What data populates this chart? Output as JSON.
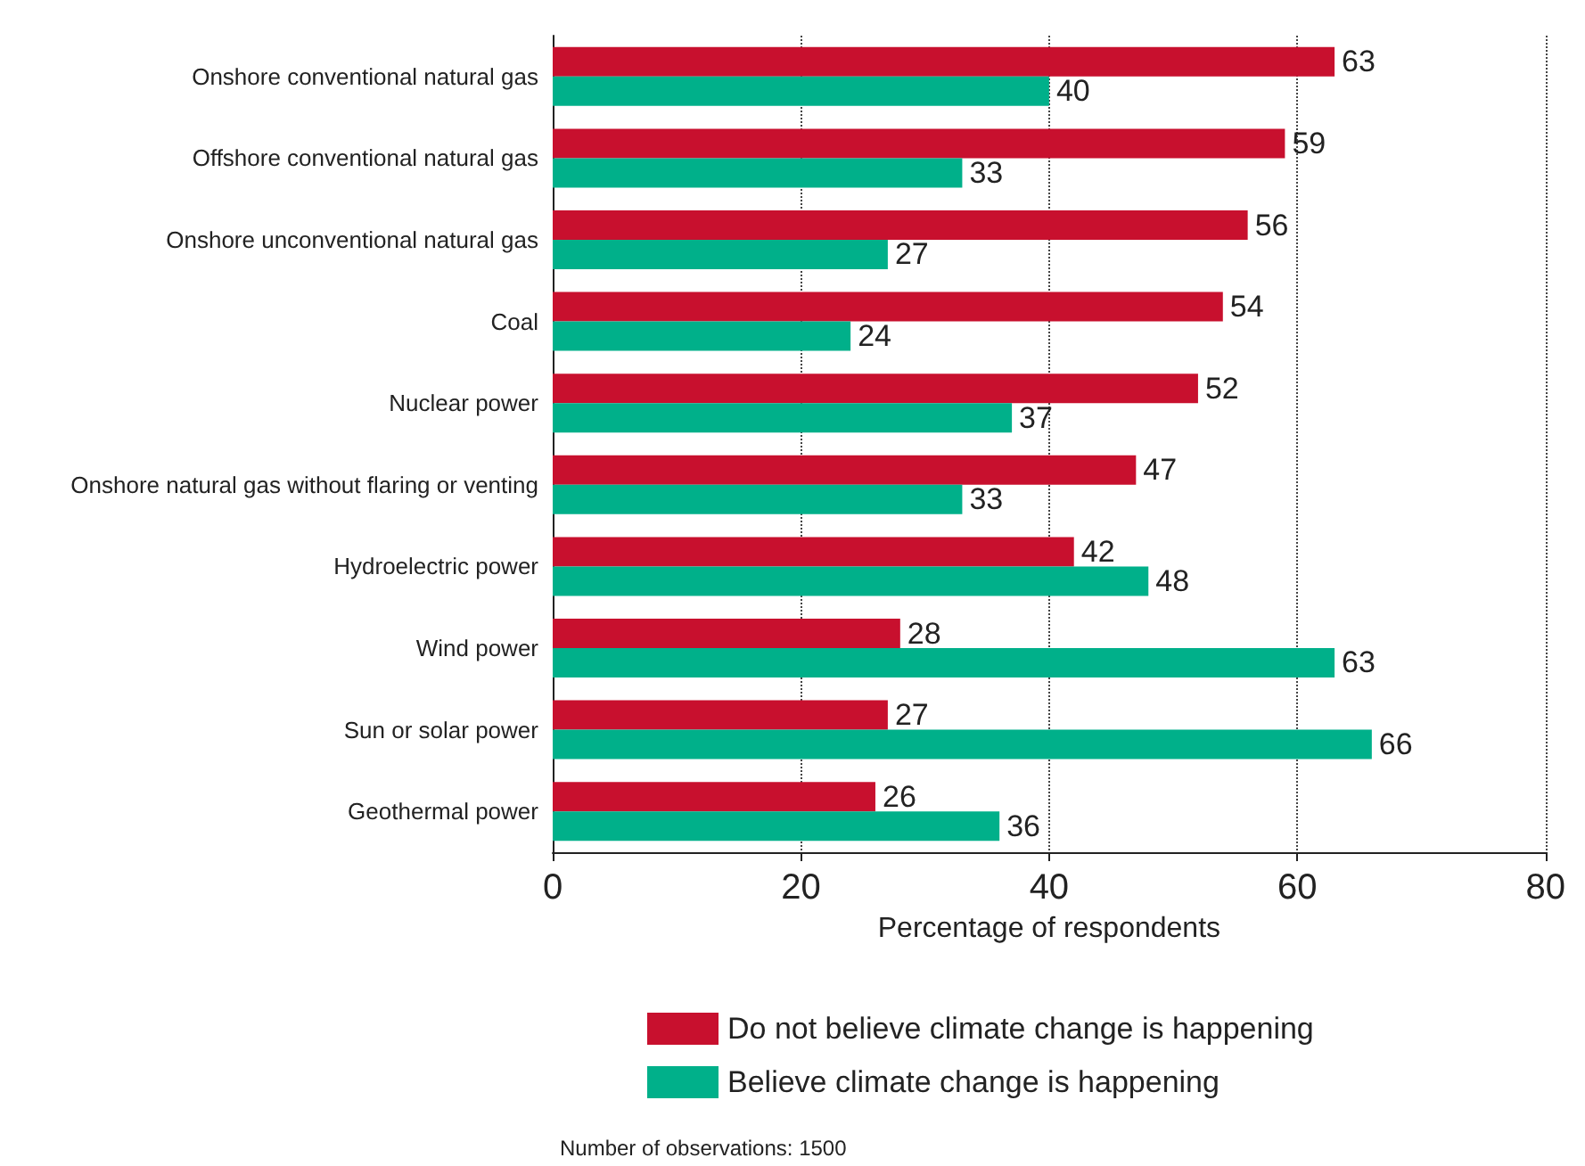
{
  "chart_data": {
    "type": "bar",
    "orientation": "horizontal",
    "xlabel": "Percentage of respondents",
    "categories": [
      "Onshore conventional natural gas",
      "Offshore conventional natural gas",
      "Onshore unconventional natural gas",
      "Coal",
      "Nuclear power",
      "Onshore natural gas without flaring or venting",
      "Hydroelectric power",
      "Wind power",
      "Sun or solar power",
      "Geothermal power"
    ],
    "series": [
      {
        "name": "Do not believe climate change is happening",
        "color": "#c8102e",
        "values": [
          63,
          59,
          56,
          54,
          52,
          47,
          42,
          28,
          27,
          26
        ]
      },
      {
        "name": "Believe climate change is happening",
        "color": "#00b08a",
        "values": [
          40,
          33,
          27,
          24,
          37,
          33,
          48,
          63,
          66,
          36
        ]
      }
    ],
    "xlim": [
      0,
      80
    ],
    "xticks": [
      0,
      20,
      40,
      60,
      80
    ],
    "grid": "x",
    "data_labels": true,
    "legend": "bottom",
    "annotations": [
      "Number of observations: 1500"
    ]
  }
}
